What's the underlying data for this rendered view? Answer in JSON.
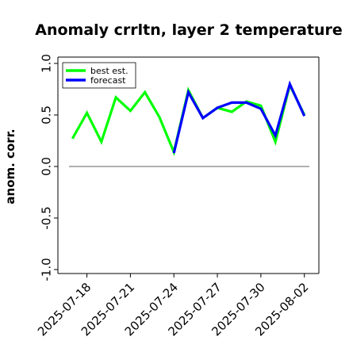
{
  "chart_data": {
    "type": "line",
    "title": "Anomaly crrltn, layer 2 temperature",
    "xlabel": "",
    "ylabel": "anom. corr.",
    "ylim": [
      -1.0,
      1.0
    ],
    "xlim": [
      "2025-07-16",
      "2025-08-03"
    ],
    "y_ticks": [
      "-1.0",
      "-0.5",
      "0.0",
      "0.5",
      "1.0"
    ],
    "x_ticks": [
      {
        "label": "2025-07-18",
        "color": "#000000"
      },
      {
        "label": "2025-07-21",
        "color": "#000000"
      },
      {
        "label": "2025-07-24",
        "color": "#228b22"
      },
      {
        "label": "2025-07-27",
        "color": "#000000"
      },
      {
        "label": "2025-07-30",
        "color": "#000000"
      },
      {
        "label": "2025-08-02",
        "color": "#000000"
      }
    ],
    "x": [
      "2025-07-17",
      "2025-07-18",
      "2025-07-19",
      "2025-07-20",
      "2025-07-21",
      "2025-07-22",
      "2025-07-23",
      "2025-07-24",
      "2025-07-25",
      "2025-07-26",
      "2025-07-27",
      "2025-07-28",
      "2025-07-29",
      "2025-07-30",
      "2025-07-31",
      "2025-08-01",
      "2025-08-02"
    ],
    "series": [
      {
        "name": "best est.",
        "color": "#00ff00",
        "values": [
          0.27,
          0.52,
          0.24,
          0.67,
          0.54,
          0.72,
          0.48,
          0.14,
          0.74,
          0.47,
          0.57,
          0.53,
          0.63,
          0.59,
          0.24,
          0.79,
          0.5
        ]
      },
      {
        "name": "forecast",
        "color": "#0000ff",
        "values": [
          null,
          null,
          null,
          null,
          null,
          null,
          null,
          0.13,
          0.72,
          0.47,
          0.57,
          0.62,
          0.62,
          0.56,
          0.3,
          0.8,
          0.49
        ]
      }
    ],
    "reference_line": {
      "y": 0.0,
      "color": "#808080"
    },
    "legend_position": "top-left",
    "grid": false
  }
}
